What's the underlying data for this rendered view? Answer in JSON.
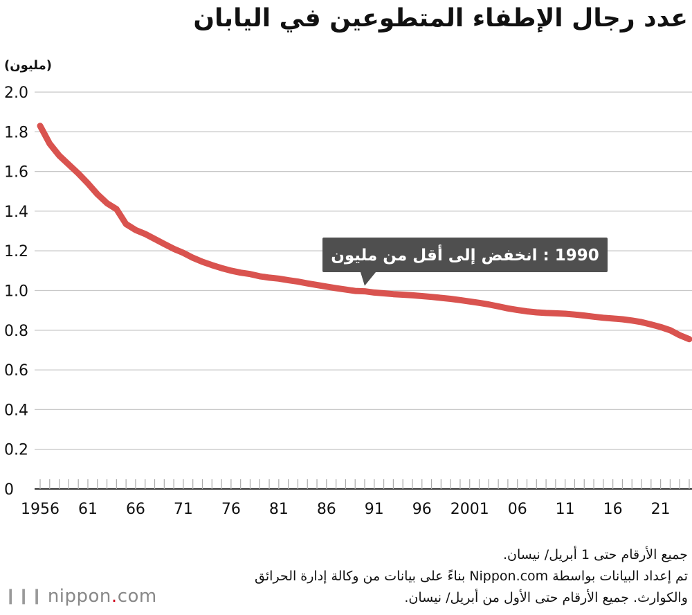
{
  "title": "عدد رجال الإطفاء المتطوعين في اليابان",
  "unit_label": "(مليون)",
  "chart_data": {
    "type": "line",
    "title": "عدد رجال الإطفاء المتطوعين في اليابان",
    "ylabel": "(مليون)",
    "xlabel": "",
    "ylim": [
      0,
      2.0
    ],
    "xlim": [
      1956,
      2024
    ],
    "grid": true,
    "yticks": [
      0,
      0.2,
      0.4,
      0.6,
      0.8,
      1.0,
      1.2,
      1.4,
      1.6,
      1.8,
      2.0
    ],
    "ytick_labels": [
      "0",
      "0.2",
      "0.4",
      "0.6",
      "0.8",
      "1.0",
      "1.2",
      "1.4",
      "1.6",
      "1.8",
      "2.0"
    ],
    "xticks": [
      1956,
      1961,
      1966,
      1971,
      1976,
      1981,
      1986,
      1991,
      1996,
      2001,
      2006,
      2011,
      2016,
      2021
    ],
    "xtick_labels": [
      "1956",
      "61",
      "66",
      "71",
      "76",
      "81",
      "86",
      "91",
      "96",
      "2001",
      "06",
      "11",
      "16",
      "21"
    ],
    "line_color": "#d9534f",
    "series": [
      {
        "x": [
          1956,
          1957,
          1958,
          1959,
          1960,
          1961,
          1962,
          1963,
          1964,
          1965,
          1966,
          1967,
          1968,
          1969,
          1970,
          1971,
          1972,
          1973,
          1974,
          1975,
          1976,
          1977,
          1978,
          1979,
          1980,
          1981,
          1982,
          1983,
          1984,
          1985,
          1986,
          1987,
          1988,
          1989,
          1990,
          1991,
          1992,
          1993,
          1994,
          1995,
          1996,
          1997,
          1998,
          1999,
          2000,
          2001,
          2002,
          2003,
          2004,
          2005,
          2006,
          2007,
          2008,
          2009,
          2010,
          2011,
          2012,
          2013,
          2014,
          2015,
          2016,
          2017,
          2018,
          2019,
          2020,
          2021,
          2022,
          2023,
          2024
        ],
        "values": [
          1.83,
          1.74,
          1.68,
          1.635,
          1.59,
          1.54,
          1.485,
          1.44,
          1.41,
          1.335,
          1.305,
          1.285,
          1.26,
          1.235,
          1.21,
          1.19,
          1.165,
          1.145,
          1.128,
          1.113,
          1.1,
          1.09,
          1.083,
          1.072,
          1.065,
          1.06,
          1.052,
          1.045,
          1.036,
          1.028,
          1.02,
          1.012,
          1.005,
          0.998,
          0.996,
          0.99,
          0.986,
          0.982,
          0.979,
          0.976,
          0.972,
          0.968,
          0.963,
          0.958,
          0.952,
          0.945,
          0.938,
          0.93,
          0.92,
          0.91,
          0.902,
          0.895,
          0.89,
          0.887,
          0.885,
          0.883,
          0.879,
          0.874,
          0.868,
          0.863,
          0.859,
          0.855,
          0.849,
          0.841,
          0.829,
          0.816,
          0.8,
          0.775,
          0.755
        ]
      }
    ],
    "annotation": {
      "x": 1990,
      "y": 0.996,
      "text": "1990 : انخفض إلى أقل من مليون"
    }
  },
  "notes": [
    "جميع الأرقام حتى 1 أبريل/ نيسان.",
    "تم إعداد البيانات بواسطة Nippon.com بناءً على بيانات من وكالة إدارة الحرائق والكوارث. جميع الأرقام حتى الأول من أبريل/ نيسان."
  ],
  "logo": {
    "name": "nippon",
    "dot": ".",
    "tld": "com"
  }
}
